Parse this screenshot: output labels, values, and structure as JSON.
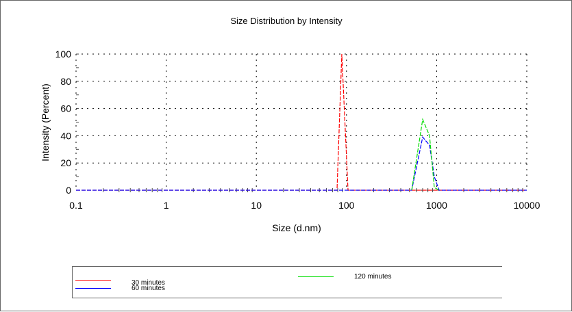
{
  "chart_data": {
    "type": "line",
    "title": "Size Distribution by Intensity",
    "xlabel": "Size (d.nm)",
    "ylabel": "Intensity (Percent)",
    "xscale": "log",
    "xlim": [
      0.1,
      10000
    ],
    "ylim": [
      0,
      100
    ],
    "xticks": [
      "0.1",
      "1",
      "10",
      "100",
      "1000",
      "10000"
    ],
    "yticks": [
      "0",
      "20",
      "40",
      "60",
      "80",
      "100"
    ],
    "grid": true,
    "legend_position": "bottom",
    "series": [
      {
        "name": "30 minutes",
        "color": "#ff0000",
        "x": [
          0.1,
          78.5,
          88.7,
          104,
          10000
        ],
        "y": [
          0,
          0,
          100,
          0,
          0
        ]
      },
      {
        "name": "60 minutes",
        "color": "#0000ff",
        "x": [
          0.1,
          529,
          700,
          834,
          942,
          1065,
          10000
        ],
        "y": [
          0,
          0,
          39,
          33,
          10,
          0,
          0
        ]
      },
      {
        "name": "120 minutes",
        "color": "#00dd00",
        "x": [
          529,
          700,
          834,
          942,
          1065
        ],
        "y": [
          0,
          52,
          40,
          2,
          0
        ]
      }
    ]
  }
}
